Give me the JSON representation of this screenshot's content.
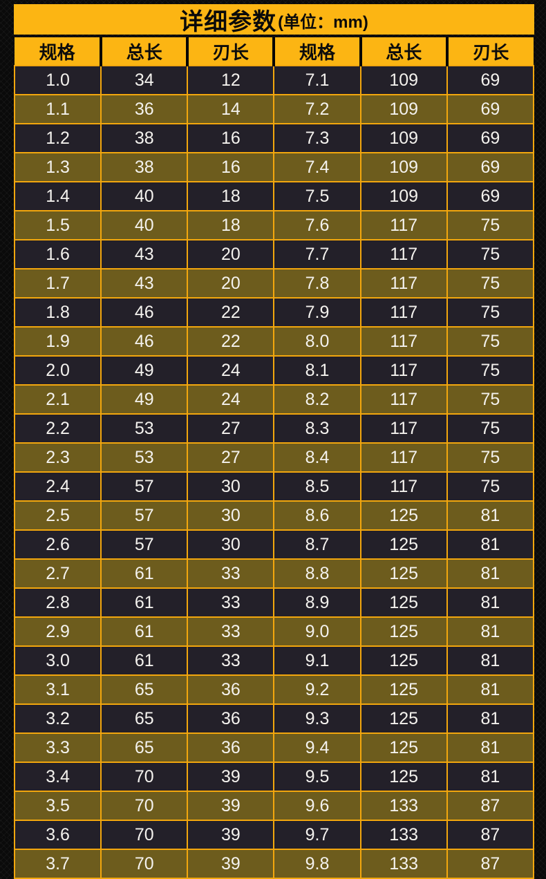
{
  "title": {
    "main": "详细参数",
    "unit": "(单位：mm)"
  },
  "table": {
    "headers": [
      "规格",
      "总长",
      "刃长",
      "规格",
      "总长",
      "刃长"
    ],
    "rows": [
      [
        "1.0",
        "34",
        "12",
        "7.1",
        "109",
        "69"
      ],
      [
        "1.1",
        "36",
        "14",
        "7.2",
        "109",
        "69"
      ],
      [
        "1.2",
        "38",
        "16",
        "7.3",
        "109",
        "69"
      ],
      [
        "1.3",
        "38",
        "16",
        "7.4",
        "109",
        "69"
      ],
      [
        "1.4",
        "40",
        "18",
        "7.5",
        "109",
        "69"
      ],
      [
        "1.5",
        "40",
        "18",
        "7.6",
        "117",
        "75"
      ],
      [
        "1.6",
        "43",
        "20",
        "7.7",
        "117",
        "75"
      ],
      [
        "1.7",
        "43",
        "20",
        "7.8",
        "117",
        "75"
      ],
      [
        "1.8",
        "46",
        "22",
        "7.9",
        "117",
        "75"
      ],
      [
        "1.9",
        "46",
        "22",
        "8.0",
        "117",
        "75"
      ],
      [
        "2.0",
        "49",
        "24",
        "8.1",
        "117",
        "75"
      ],
      [
        "2.1",
        "49",
        "24",
        "8.2",
        "117",
        "75"
      ],
      [
        "2.2",
        "53",
        "27",
        "8.3",
        "117",
        "75"
      ],
      [
        "2.3",
        "53",
        "27",
        "8.4",
        "117",
        "75"
      ],
      [
        "2.4",
        "57",
        "30",
        "8.5",
        "117",
        "75"
      ],
      [
        "2.5",
        "57",
        "30",
        "8.6",
        "125",
        "81"
      ],
      [
        "2.6",
        "57",
        "30",
        "8.7",
        "125",
        "81"
      ],
      [
        "2.7",
        "61",
        "33",
        "8.8",
        "125",
        "81"
      ],
      [
        "2.8",
        "61",
        "33",
        "8.9",
        "125",
        "81"
      ],
      [
        "2.9",
        "61",
        "33",
        "9.0",
        "125",
        "81"
      ],
      [
        "3.0",
        "61",
        "33",
        "9.1",
        "125",
        "81"
      ],
      [
        "3.1",
        "65",
        "36",
        "9.2",
        "125",
        "81"
      ],
      [
        "3.2",
        "65",
        "36",
        "9.3",
        "125",
        "81"
      ],
      [
        "3.3",
        "65",
        "36",
        "9.4",
        "125",
        "81"
      ],
      [
        "3.4",
        "70",
        "39",
        "9.5",
        "125",
        "81"
      ],
      [
        "3.5",
        "70",
        "39",
        "9.6",
        "133",
        "87"
      ],
      [
        "3.6",
        "70",
        "39",
        "9.7",
        "133",
        "87"
      ],
      [
        "3.7",
        "70",
        "39",
        "9.8",
        "133",
        "87"
      ]
    ]
  },
  "colors": {
    "banner_yellow": "#FCB513",
    "grid_border_orange": "#F3A70D",
    "row_dark": "#232029",
    "row_olive": "#6D5C1D",
    "cell_text": "#F4F2EE",
    "header_text": "#0C0C0C",
    "page_background": "#0A0A0A"
  }
}
